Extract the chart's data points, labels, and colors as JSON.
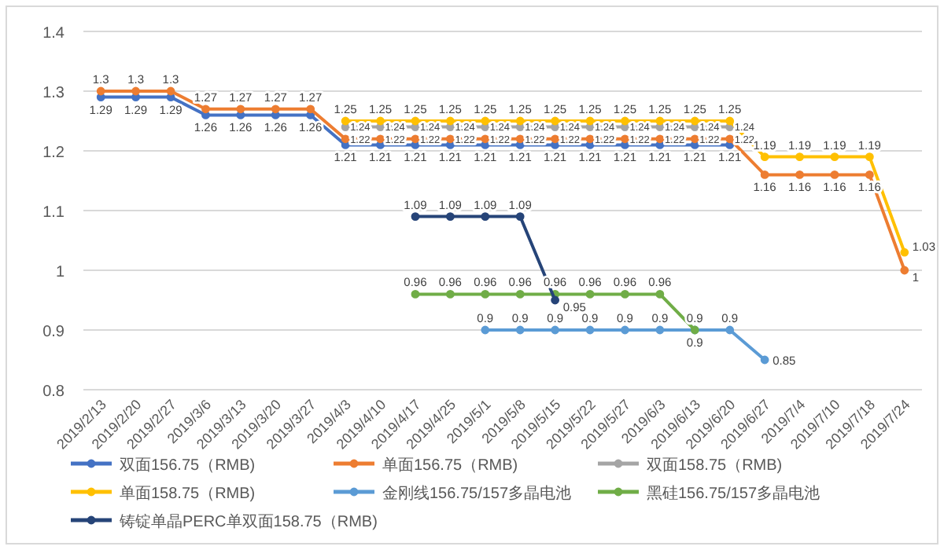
{
  "chart_data": {
    "type": "line",
    "categories": [
      "2019/2/13",
      "2019/2/20",
      "2019/2/27",
      "2019/3/6",
      "2019/3/13",
      "2019/3/20",
      "2019/3/27",
      "2019/4/3",
      "2019/4/10",
      "2019/4/17",
      "2019/4/25",
      "2019/5/1",
      "2019/5/8",
      "2019/5/15",
      "2019/5/22",
      "2019/5/27",
      "2019/6/3",
      "2019/6/13",
      "2019/6/20",
      "2019/6/27",
      "2019/7/4",
      "2019/7/10",
      "2019/7/18",
      "2019/7/24"
    ],
    "series": [
      {
        "name": "双面156.75（RMB)",
        "color": "#4472c4",
        "values": [
          1.29,
          1.29,
          1.29,
          1.26,
          1.26,
          1.26,
          1.26,
          1.21,
          1.21,
          1.21,
          1.21,
          1.21,
          1.21,
          1.21,
          1.21,
          1.21,
          1.21,
          1.21,
          1.21,
          null,
          null,
          null,
          null,
          null
        ]
      },
      {
        "name": "单面156.75（RMB)",
        "color": "#ed7d31",
        "values": [
          1.3,
          1.3,
          1.3,
          1.27,
          1.27,
          1.27,
          1.27,
          1.22,
          1.22,
          1.22,
          1.22,
          1.22,
          1.22,
          1.22,
          1.22,
          1.22,
          1.22,
          1.22,
          1.22,
          1.16,
          1.16,
          1.16,
          1.16,
          1
        ]
      },
      {
        "name": "双面158.75（RMB)",
        "color": "#a5a5a5",
        "values": [
          null,
          null,
          null,
          null,
          null,
          null,
          null,
          1.24,
          1.24,
          1.24,
          1.24,
          1.24,
          1.24,
          1.24,
          1.24,
          1.24,
          1.24,
          1.24,
          1.24,
          null,
          null,
          null,
          null,
          null
        ]
      },
      {
        "name": "单面158.75（RMB)",
        "color": "#ffc000",
        "values": [
          null,
          null,
          null,
          null,
          null,
          null,
          null,
          1.25,
          1.25,
          1.25,
          1.25,
          1.25,
          1.25,
          1.25,
          1.25,
          1.25,
          1.25,
          1.25,
          1.25,
          1.19,
          1.19,
          1.19,
          1.19,
          1.03
        ]
      },
      {
        "name": "金刚线156.75/157多晶电池",
        "color": "#5b9bd5",
        "values": [
          null,
          null,
          null,
          null,
          null,
          null,
          null,
          null,
          null,
          null,
          null,
          0.9,
          0.9,
          0.9,
          0.9,
          0.9,
          0.9,
          0.9,
          0.9,
          0.85,
          null,
          null,
          null,
          null
        ]
      },
      {
        "name": "黑硅156.75/157多晶电池",
        "color": "#70ad47",
        "values": [
          null,
          null,
          null,
          null,
          null,
          null,
          null,
          null,
          null,
          0.96,
          0.96,
          0.96,
          0.96,
          0.96,
          0.96,
          0.96,
          0.96,
          0.9,
          null,
          null,
          null,
          null,
          null,
          null
        ]
      },
      {
        "name": "铸锭单晶PERC单双面158.75（RMB)",
        "color": "#264478",
        "values": [
          null,
          null,
          null,
          null,
          null,
          null,
          null,
          null,
          null,
          1.09,
          1.09,
          1.09,
          1.09,
          0.95,
          null,
          null,
          null,
          null,
          null,
          null,
          null,
          null,
          null,
          null
        ]
      }
    ],
    "ylim": [
      0.8,
      1.4
    ],
    "yticks": [
      0.8,
      0.9,
      1,
      1.1,
      1.2,
      1.3,
      1.4
    ],
    "grid": "y",
    "legend": "bottom",
    "marker": "circle",
    "line_style": "solid",
    "data_labels": true
  }
}
